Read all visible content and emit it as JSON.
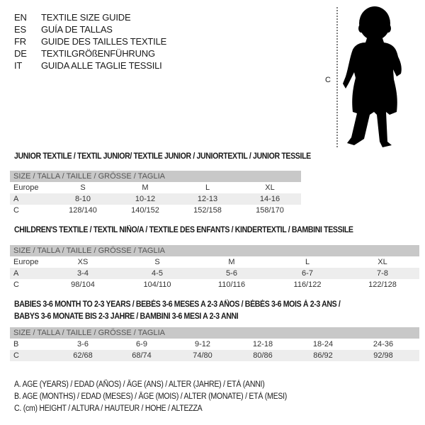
{
  "header": {
    "languages": [
      {
        "code": "EN",
        "title": "TEXTILE SIZE GUIDE"
      },
      {
        "code": "ES",
        "title": "GUÍA DE TALLAS"
      },
      {
        "code": "FR",
        "title": "GUIDE DES TAILLES TEXTILE"
      },
      {
        "code": "DE",
        "title": "TEXTILGRÖßENFÜHRUNG"
      },
      {
        "code": "IT",
        "title": "GUIDA ALLE TAGLIE TESSILI"
      }
    ]
  },
  "figure": {
    "measure_label": "C",
    "icon": "child-silhouette-icon"
  },
  "colors": {
    "header_row": "#c8c8c8",
    "alt_row": "#ededed",
    "text": "#1a1a1a"
  },
  "tables": [
    {
      "title": "JUNIOR TEXTILE / TEXTIL JUNIOR/ TEXTILE JUNIOR / JUNIORTEXTIL / JUNIOR TESSILE",
      "header": "SIZE / TALLA / TAILLE / GRÖSSE / TAGLIA",
      "rows": [
        {
          "label": "Europe",
          "values": [
            "S",
            "M",
            "L",
            "XL"
          ]
        },
        {
          "label": "A",
          "values": [
            "8-10",
            "10-12",
            "12-13",
            "14-16"
          ]
        },
        {
          "label": "C",
          "values": [
            "128/140",
            "140/152",
            "152/158",
            "158/170"
          ]
        }
      ]
    },
    {
      "title": "CHILDREN'S TEXTILE / TEXTIL NIÑO/A / TEXTILE DES ENFANTS / KINDERTEXTIL / BAMBINI TESSILE",
      "header": "SIZE / TALLA / TAILLE / GRÖSSE / TAGLIA",
      "rows": [
        {
          "label": "Europe",
          "values": [
            "XS",
            "S",
            "M",
            "L",
            "XL"
          ]
        },
        {
          "label": "A",
          "values": [
            "3-4",
            "4-5",
            "5-6",
            "6-7",
            "7-8"
          ]
        },
        {
          "label": "C",
          "values": [
            "98/104",
            "104/110",
            "110/116",
            "116/122",
            "122/128"
          ]
        }
      ]
    },
    {
      "title": "BABIES 3-6 MONTH TO 2-3 YEARS / BEBÉS 3-6 MESES A 2-3 AÑOS / BÉBÉS 3-6 MOIS À 2-3 ANS /",
      "title2": "BABYS 3-6 MONATE BIS 2-3 JAHRE / BAMBINI 3-6 MESI A 2-3 ANNI",
      "header": "SIZE / TALLA / TAILLE / GRÖSSE / TAGLIA",
      "rows": [
        {
          "label": "B",
          "values": [
            "3-6",
            "6-9",
            "9-12",
            "12-18",
            "18-24",
            "24-36"
          ]
        },
        {
          "label": "C",
          "values": [
            "62/68",
            "68/74",
            "74/80",
            "80/86",
            "86/92",
            "92/98"
          ]
        }
      ]
    }
  ],
  "legend": [
    "A. AGE (YEARS) / EDAD (AÑOS) / ÂGE (ANS) / ALTER (JAHRE) / ETÀ (ANNI)",
    "B. AGE (MONTHS) / EDAD (MESES) / ÂGE (MOIS) / ALTER (MONATE) / ETÀ (MESI)",
    "C. (cm) HEIGHT / ALTURA / HAUTEUR / HÖHE / ALTEZZA"
  ]
}
